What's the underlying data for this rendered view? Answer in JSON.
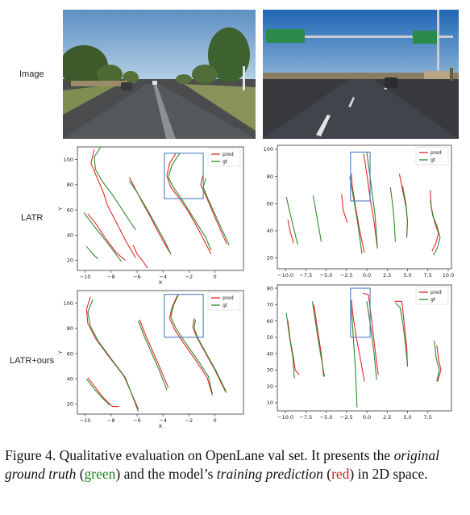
{
  "rows": [
    {
      "label": "Image"
    },
    {
      "label": "LATR"
    },
    {
      "label": "LATR+ours"
    }
  ],
  "colors": {
    "pred": "#e8262b",
    "gt": "#2d8a2d",
    "box": "#4d7fc4"
  },
  "chart_data": [
    {
      "id": "latr-left",
      "type": "line",
      "xlabel": "X",
      "ylabel": "Y",
      "xlim": [
        -10.6,
        2.2
      ],
      "ylim": [
        12,
        110
      ],
      "xticks": [
        -10,
        -8,
        -6,
        -4,
        -2,
        0
      ],
      "xtick_labels": [
        "−10",
        "−8",
        "−6",
        "−4",
        "−2",
        "0"
      ],
      "yticks": [
        20,
        40,
        60,
        80,
        100
      ],
      "ytick_labels": [
        "20",
        "40",
        "60",
        "80",
        "100"
      ],
      "legend": [
        "pred",
        "gt"
      ],
      "legend_position": "top-right",
      "highlight_box": {
        "x0": -3.9,
        "x1": -0.9,
        "y0": 69,
        "y1": 105
      },
      "series": [
        {
          "name": "pred",
          "x": [
            -9.3,
            -9.55,
            -9.1,
            -8.6,
            -8.3,
            -7.5,
            -6.8,
            -6.1
          ],
          "y": [
            108,
            97,
            86,
            74,
            64,
            48,
            34,
            22
          ]
        },
        {
          "name": "pred",
          "x": [
            -6.6,
            -6.2,
            -5.7,
            -5.0,
            -4.4,
            -3.8,
            -3.4
          ],
          "y": [
            86,
            78,
            68,
            55,
            43,
            32,
            25
          ]
        },
        {
          "name": "pred",
          "x": [
            -3.0,
            -3.5,
            -3.7,
            -3.4,
            -2.8,
            -2.0,
            -1.3,
            -0.3
          ],
          "y": [
            105,
            97,
            87,
            78,
            70,
            58,
            45,
            25
          ]
        },
        {
          "name": "pred",
          "x": [
            -0.9,
            -1.1,
            -0.6,
            0.1,
            0.9
          ],
          "y": [
            88,
            80,
            69,
            52,
            33
          ]
        },
        {
          "name": "pred",
          "x": [
            -9.8,
            -9.1,
            -8.4,
            -7.6,
            -6.9
          ],
          "y": [
            57,
            48,
            37,
            26,
            20
          ]
        },
        {
          "name": "pred",
          "x": [
            -6.3,
            -6.0,
            -5.6,
            -5.2
          ],
          "y": [
            32,
            25,
            20,
            14
          ]
        },
        {
          "name": "gt",
          "x": [
            -8.8,
            -9.3,
            -9.2,
            -8.7,
            -7.9,
            -7.0,
            -6.1
          ],
          "y": [
            110,
            102,
            92,
            83,
            72,
            58,
            44
          ]
        },
        {
          "name": "gt",
          "x": [
            -6.6,
            -6.0,
            -5.2,
            -4.5,
            -3.9,
            -3.4
          ],
          "y": [
            83,
            74,
            60,
            47,
            36,
            25
          ]
        },
        {
          "name": "gt",
          "x": [
            -2.7,
            -3.3,
            -3.6,
            -3.2,
            -2.4,
            -1.5,
            -0.7,
            -0.3
          ],
          "y": [
            105,
            96,
            86,
            78,
            66,
            51,
            38,
            28
          ]
        },
        {
          "name": "gt",
          "x": [
            -0.7,
            -0.9,
            -0.5,
            0.3,
            1.1
          ],
          "y": [
            85,
            78,
            68,
            50,
            32
          ]
        },
        {
          "name": "gt",
          "x": [
            -10.1,
            -9.3,
            -8.3,
            -7.2
          ],
          "y": [
            58,
            47,
            34,
            19
          ]
        },
        {
          "name": "gt",
          "x": [
            -9.9,
            -9.4,
            -9.0
          ],
          "y": [
            31,
            25,
            21
          ]
        }
      ]
    },
    {
      "id": "latr-right",
      "type": "line",
      "xlabel": "",
      "ylabel": "",
      "xlim": [
        -11.0,
        10.4
      ],
      "ylim": [
        12,
        103
      ],
      "xticks": [
        -10,
        -7.5,
        -5,
        -2.5,
        0,
        2.5,
        5,
        7.5,
        10
      ],
      "xtick_labels": [
        "−10.0",
        "−7.5",
        "−5.0",
        "−2.5",
        "0.0",
        "2.5",
        "5.0",
        "7.5",
        "10.0"
      ],
      "yticks": [
        20,
        40,
        60,
        80,
        100
      ],
      "ytick_labels": [
        "20",
        "40",
        "60",
        "80",
        "100"
      ],
      "legend": [
        "pred",
        "gt"
      ],
      "legend_position": "top-right",
      "highlight_box": {
        "x0": -2.0,
        "x1": 0.4,
        "y0": 62,
        "y1": 98
      },
      "series": [
        {
          "name": "pred",
          "x": [
            -1.9,
            -1.8,
            -1.4,
            -0.9,
            -0.3
          ],
          "y": [
            82,
            73,
            58,
            41,
            24
          ]
        },
        {
          "name": "pred",
          "x": [
            -0.4,
            0.0,
            0.4,
            0.9,
            1.3
          ],
          "y": [
            97,
            82,
            64,
            46,
            27
          ]
        },
        {
          "name": "pred",
          "x": [
            4.0,
            4.4,
            4.8,
            5.0,
            4.9
          ],
          "y": [
            82,
            70,
            58,
            47,
            35
          ]
        },
        {
          "name": "pred",
          "x": [
            7.8,
            7.9,
            8.3,
            8.8,
            8.5,
            8.0
          ],
          "y": [
            70,
            58,
            47,
            38,
            31,
            25
          ]
        },
        {
          "name": "pred",
          "x": [
            -9.7,
            -9.4,
            -9.0
          ],
          "y": [
            48,
            39,
            31
          ]
        },
        {
          "name": "pred",
          "x": [
            -3.1,
            -2.9,
            -2.4
          ],
          "y": [
            67,
            55,
            46
          ]
        },
        {
          "name": "gt",
          "x": [
            -2.1,
            -1.6,
            -1.1,
            -0.6
          ],
          "y": [
            80,
            63,
            45,
            23
          ]
        },
        {
          "name": "gt",
          "x": [
            0.0,
            0.5,
            1.0,
            1.3
          ],
          "y": [
            98,
            75,
            52,
            28
          ]
        },
        {
          "name": "gt",
          "x": [
            -9.9,
            -9.2,
            -8.5
          ],
          "y": [
            65,
            47,
            30
          ]
        },
        {
          "name": "gt",
          "x": [
            -6.6,
            -6.1,
            -5.6
          ],
          "y": [
            66,
            49,
            32
          ]
        },
        {
          "name": "gt",
          "x": [
            2.9,
            3.2,
            3.4,
            3.5
          ],
          "y": [
            72,
            58,
            44,
            32
          ]
        },
        {
          "name": "gt",
          "x": [
            4.4,
            4.8,
            5.0,
            4.9
          ],
          "y": [
            73,
            60,
            47,
            36
          ]
        },
        {
          "name": "gt",
          "x": [
            7.8,
            8.1,
            8.6,
            9.0,
            8.7,
            8.2
          ],
          "y": [
            62,
            51,
            44,
            35,
            28,
            22
          ]
        }
      ]
    },
    {
      "id": "ours-left",
      "type": "line",
      "xlabel": "X",
      "ylabel": "Y",
      "xlim": [
        -10.6,
        2.2
      ],
      "ylim": [
        12,
        110
      ],
      "xticks": [
        -10,
        -8,
        -6,
        -4,
        -2,
        0
      ],
      "xtick_labels": [
        "−10",
        "−8",
        "−6",
        "−4",
        "−2",
        "0"
      ],
      "yticks": [
        20,
        40,
        60,
        80,
        100
      ],
      "ytick_labels": [
        "20",
        "40",
        "60",
        "80",
        "100"
      ],
      "legend": [
        "pred",
        "gt"
      ],
      "legend_position": "top-right",
      "highlight_box": {
        "x0": -3.9,
        "x1": -0.9,
        "y0": 73,
        "y1": 107
      },
      "series": [
        {
          "name": "pred",
          "x": [
            -9.6,
            -9.9,
            -9.8,
            -9.2,
            -8.2,
            -7.0,
            -5.9
          ],
          "y": [
            105,
            95,
            84,
            72,
            58,
            42,
            16
          ]
        },
        {
          "name": "pred",
          "x": [
            -5.8,
            -5.4,
            -4.8,
            -4.2,
            -3.6
          ],
          "y": [
            87,
            76,
            62,
            48,
            33
          ]
        },
        {
          "name": "pred",
          "x": [
            -2.9,
            -3.3,
            -3.5,
            -3.1,
            -2.4,
            -1.5,
            -0.6,
            -0.2
          ],
          "y": [
            106,
            97,
            88,
            79,
            68,
            55,
            41,
            27
          ]
        },
        {
          "name": "pred",
          "x": [
            -1.6,
            -1.7,
            -1.4,
            -0.7,
            0.0,
            0.8
          ],
          "y": [
            88,
            81,
            73,
            60,
            47,
            30
          ]
        },
        {
          "name": "pred",
          "x": [
            -9.8,
            -9.2,
            -8.6,
            -7.9,
            -7.4
          ],
          "y": [
            41,
            33,
            25,
            18,
            18
          ]
        },
        {
          "name": "gt",
          "x": [
            -9.4,
            -9.8,
            -9.6,
            -9.0,
            -8.0,
            -6.9,
            -5.9
          ],
          "y": [
            103,
            93,
            82,
            70,
            56,
            41,
            14
          ]
        },
        {
          "name": "gt",
          "x": [
            -5.9,
            -5.5,
            -4.9,
            -4.3,
            -3.7
          ],
          "y": [
            86,
            75,
            61,
            47,
            31
          ]
        },
        {
          "name": "gt",
          "x": [
            -2.8,
            -3.2,
            -3.4,
            -3.0,
            -2.3,
            -1.4,
            -0.5,
            -0.2
          ],
          "y": [
            107,
            98,
            89,
            80,
            69,
            56,
            42,
            28
          ]
        },
        {
          "name": "gt",
          "x": [
            -1.5,
            -1.6,
            -1.3,
            -0.6,
            0.1,
            0.9
          ],
          "y": [
            87,
            80,
            72,
            59,
            46,
            29
          ]
        },
        {
          "name": "gt",
          "x": [
            -9.9,
            -9.3,
            -8.7,
            -8.1
          ],
          "y": [
            40,
            32,
            25,
            19
          ]
        }
      ]
    },
    {
      "id": "ours-right",
      "type": "line",
      "xlabel": "",
      "ylabel": "",
      "xlim": [
        -11.0,
        10.4
      ],
      "ylim": [
        5,
        82
      ],
      "xticks": [
        -10,
        -7.5,
        -5,
        -2.5,
        0,
        2.5,
        5,
        7.5
      ],
      "xtick_labels": [
        "−10.0",
        "−7.5",
        "−5.0",
        "−2.5",
        "0.0",
        "2.5",
        "5.0",
        "7.5"
      ],
      "yticks": [
        10,
        20,
        30,
        40,
        50,
        60,
        70,
        80
      ],
      "ytick_labels": [
        "10",
        "20",
        "30",
        "40",
        "50",
        "60",
        "70",
        "80"
      ],
      "legend": [
        "pred",
        "gt"
      ],
      "legend_position": "top-right",
      "highlight_box": {
        "x0": -2.0,
        "x1": 0.4,
        "y0": 50,
        "y1": 80
      },
      "series": [
        {
          "name": "pred",
          "x": [
            -1.9,
            -1.7,
            -1.3,
            -0.8,
            -0.3
          ],
          "y": [
            73,
            63,
            50,
            37,
            23
          ]
        },
        {
          "name": "pred",
          "x": [
            -0.5,
            0.2,
            0.6,
            1.0,
            1.4
          ],
          "y": [
            77,
            76,
            60,
            43,
            27
          ]
        },
        {
          "name": "pred",
          "x": [
            -9.7,
            -9.4,
            -9.0,
            -8.8,
            -8.3
          ],
          "y": [
            60,
            48,
            37,
            30,
            27
          ]
        },
        {
          "name": "pred",
          "x": [
            -6.5,
            -6.1,
            -5.6,
            -5.3
          ],
          "y": [
            70,
            56,
            40,
            26
          ]
        },
        {
          "name": "pred",
          "x": [
            3.4,
            4.3,
            4.6,
            4.9,
            5.0
          ],
          "y": [
            72,
            72,
            58,
            44,
            32
          ]
        },
        {
          "name": "pred",
          "x": [
            8.6,
            8.8,
            9.1,
            8.7
          ],
          "y": [
            45,
            37,
            30,
            23
          ]
        },
        {
          "name": "gt",
          "x": [
            -2.0,
            -1.8,
            -1.6,
            -1.4,
            -1.2
          ],
          "y": [
            72,
            60,
            45,
            30,
            7
          ]
        },
        {
          "name": "gt",
          "x": [
            0.0,
            0.5,
            0.9,
            1.2
          ],
          "y": [
            72,
            55,
            40,
            24
          ]
        },
        {
          "name": "gt",
          "x": [
            -9.9,
            -9.5,
            -9.1,
            -8.9
          ],
          "y": [
            65,
            50,
            38,
            25
          ]
        },
        {
          "name": "gt",
          "x": [
            -6.7,
            -6.2,
            -5.7,
            -5.2
          ],
          "y": [
            72,
            56,
            40,
            26
          ]
        },
        {
          "name": "gt",
          "x": [
            3.5,
            4.1,
            4.5,
            4.8,
            5.0
          ],
          "y": [
            71,
            68,
            56,
            43,
            33
          ]
        },
        {
          "name": "gt",
          "x": [
            8.3,
            8.5,
            8.9,
            8.6
          ],
          "y": [
            48,
            38,
            30,
            23
          ]
        }
      ]
    }
  ],
  "caption": {
    "p1": "Figure 4. Qualitative evaluation on OpenLane val set. It presents the ",
    "em1": "original ground truth",
    "p2": " (",
    "green": "green",
    "p3": ") and the model’s ",
    "em2": "training prediction",
    "p4": " (",
    "red": "red",
    "p5": ") in 2D space."
  }
}
